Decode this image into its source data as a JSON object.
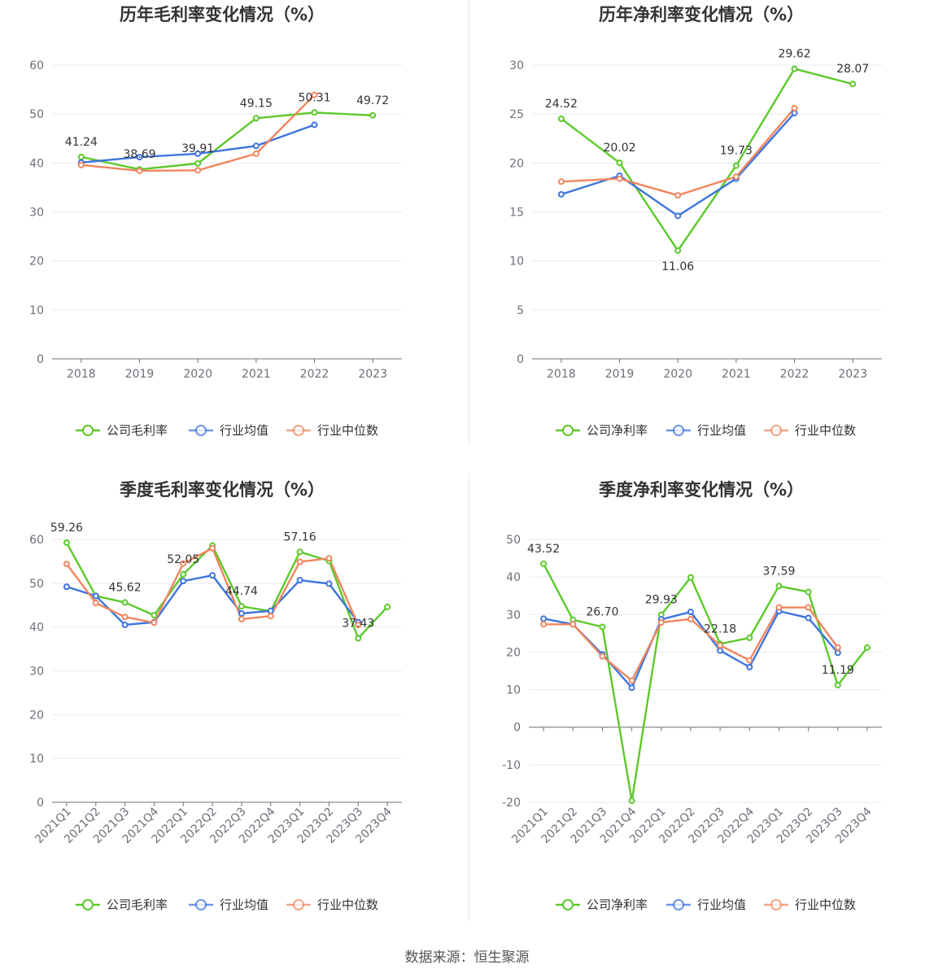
{
  "colors": {
    "company": "#5cc92a",
    "industry_avg": "#3e74de",
    "industry_median": "#f0865f"
  },
  "source": {
    "text": "数据来源：恒生聚源"
  },
  "chart_data": [
    {
      "type": "line",
      "title": "历年毛利率变化情况（%）",
      "categories": [
        "2018",
        "2019",
        "2020",
        "2021",
        "2022",
        "2023"
      ],
      "ylim": [
        0,
        60
      ],
      "yticks": [
        0,
        10,
        20,
        30,
        40,
        50,
        60
      ],
      "grid": true,
      "legend_position": "bottom",
      "series": [
        {
          "name": "公司毛利率",
          "values": [
            41.24,
            38.69,
            39.91,
            49.15,
            50.31,
            49.72
          ]
        },
        {
          "name": "行业均值",
          "values": [
            40.1,
            41.2,
            41.9,
            43.5,
            47.8,
            null
          ]
        },
        {
          "name": "行业中位数",
          "values": [
            39.6,
            38.4,
            38.5,
            41.9,
            53.9,
            null
          ]
        }
      ],
      "labels": [
        "41.24",
        "38.69",
        "39.91",
        "49.15",
        "50.31",
        "49.72"
      ]
    },
    {
      "type": "line",
      "title": "历年净利率变化情况（%）",
      "categories": [
        "2018",
        "2019",
        "2020",
        "2021",
        "2022",
        "2023"
      ],
      "ylim": [
        0,
        30
      ],
      "yticks": [
        0,
        5,
        10,
        15,
        20,
        25,
        30
      ],
      "grid": true,
      "legend_position": "bottom",
      "series": [
        {
          "name": "公司净利率",
          "values": [
            24.52,
            20.02,
            11.06,
            19.73,
            29.62,
            28.07
          ]
        },
        {
          "name": "行业均值",
          "values": [
            16.8,
            18.7,
            14.6,
            18.4,
            25.1,
            null
          ]
        },
        {
          "name": "行业中位数",
          "values": [
            18.1,
            18.4,
            16.7,
            18.6,
            25.6,
            null
          ]
        }
      ],
      "labels": [
        "24.52",
        "20.02",
        "11.06",
        "19.73",
        "29.62",
        "28.07"
      ]
    },
    {
      "type": "line",
      "title": "季度毛利率变化情况（%）",
      "categories": [
        "2021Q1",
        "2021Q2",
        "2021Q3",
        "2021Q4",
        "2022Q1",
        "2022Q2",
        "2022Q3",
        "2022Q4",
        "2023Q1",
        "2023Q2",
        "2023Q3",
        "2023Q4"
      ],
      "ylim": [
        0,
        60
      ],
      "yticks": [
        0,
        10,
        20,
        30,
        40,
        50,
        60
      ],
      "grid": true,
      "legend_position": "bottom",
      "series": [
        {
          "name": "公司毛利率",
          "values": [
            59.26,
            47.1,
            45.62,
            42.7,
            52.05,
            58.6,
            44.74,
            43.6,
            57.16,
            55.1,
            37.43,
            44.6
          ]
        },
        {
          "name": "行业均值",
          "values": [
            49.2,
            47.1,
            40.5,
            41.1,
            50.5,
            51.8,
            43.1,
            43.7,
            50.7,
            49.9,
            41.1,
            null
          ]
        },
        {
          "name": "行业中位数",
          "values": [
            54.4,
            45.5,
            42.3,
            41.0,
            54.5,
            58.0,
            41.8,
            42.5,
            54.9,
            55.7,
            40.5,
            null
          ]
        }
      ],
      "labels": [
        "59.26",
        "",
        "45.62",
        "",
        "52.05",
        "",
        "44.74",
        "",
        "57.16",
        "",
        "37.43",
        ""
      ]
    },
    {
      "type": "line",
      "title": "季度净利率变化情况（%）",
      "categories": [
        "2021Q1",
        "2021Q2",
        "2021Q3",
        "2021Q4",
        "2022Q1",
        "2022Q2",
        "2022Q3",
        "2022Q4",
        "2023Q1",
        "2023Q2",
        "2023Q3",
        "2023Q4"
      ],
      "ylim": [
        -20,
        50
      ],
      "yticks": [
        -20,
        -10,
        0,
        10,
        20,
        30,
        40,
        50
      ],
      "grid": true,
      "legend_position": "bottom",
      "series": [
        {
          "name": "公司净利率",
          "values": [
            43.52,
            28.6,
            26.7,
            -19.6,
            29.93,
            39.9,
            22.18,
            23.8,
            37.59,
            36.0,
            11.19,
            21.2
          ]
        },
        {
          "name": "行业均值",
          "values": [
            28.9,
            27.4,
            19.4,
            10.5,
            28.7,
            30.7,
            20.4,
            16.0,
            30.9,
            29.1,
            19.8,
            null
          ]
        },
        {
          "name": "行业中位数",
          "values": [
            27.4,
            27.4,
            18.9,
            12.4,
            27.9,
            28.8,
            21.8,
            17.8,
            31.9,
            31.9,
            21.2,
            null
          ]
        }
      ],
      "labels": [
        "43.52",
        "",
        "26.70",
        "",
        "29.93",
        "",
        "22.18",
        "",
        "37.59",
        "",
        "11.19",
        ""
      ]
    }
  ]
}
